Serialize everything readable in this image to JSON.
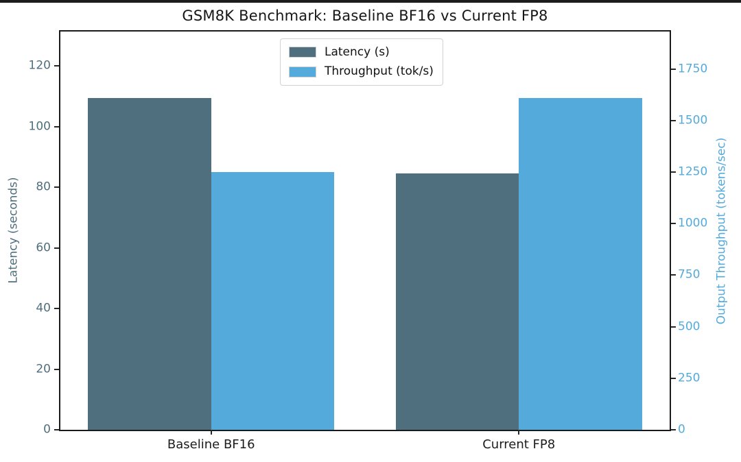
{
  "figure": {
    "title": "GSM8K Benchmark: Baseline BF16 vs Current FP8"
  },
  "chart_data": {
    "type": "bar",
    "title": "GSM8K Benchmark: Baseline BF16 vs Current FP8",
    "categories": [
      "Baseline BF16",
      "Current FP8"
    ],
    "series": [
      {
        "name": "Latency (s)",
        "axis": "left",
        "values": [
          109.5,
          84.6
        ],
        "color": "#4f6f7e"
      },
      {
        "name": "Throughput (tok/s)",
        "axis": "right",
        "values": [
          1250,
          1610
        ],
        "color": "#55aadc"
      }
    ],
    "axes": {
      "left": {
        "label": "Latency (seconds)",
        "ticks": [
          0,
          20,
          40,
          60,
          80,
          100,
          120
        ],
        "lim": [
          0,
          131.4
        ],
        "color": "#4f6f7e"
      },
      "right": {
        "label": "Output Throughput (tokens/sec)",
        "ticks": [
          0,
          250,
          500,
          750,
          1000,
          1250,
          1500,
          1750
        ],
        "lim": [
          0,
          1932
        ],
        "color": "#55aadc"
      }
    },
    "xlim": [
      -0.49,
      1.49
    ],
    "bar_width": 0.4,
    "legend": {
      "position": "upper center",
      "entries": [
        "Latency (s)",
        "Throughput (tok/s)"
      ]
    },
    "grid": false,
    "background": "#ffffff",
    "spine_color": "#1a1a1a"
  }
}
